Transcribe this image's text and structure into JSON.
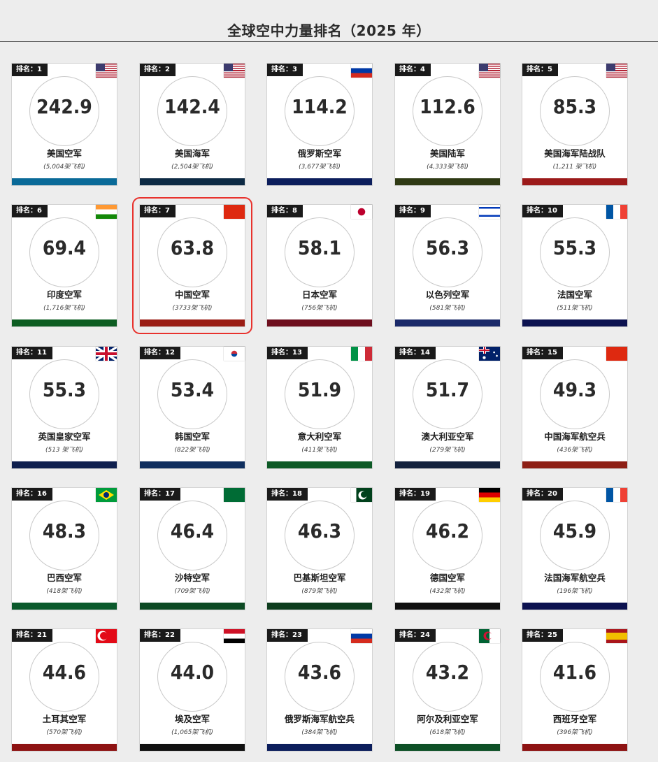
{
  "title": "全球空中力量排名（2025 年）",
  "cards": [
    {
      "rank": "排名：1",
      "score": "242.9",
      "name": "美国空军",
      "aircraft": "(5,004架飞机)",
      "flag": "us-flag-icon",
      "flag_class": "f-us",
      "bar_color": "#0a6a98"
    },
    {
      "rank": "排名：2",
      "score": "142.4",
      "name": "美国海军",
      "aircraft": "(2,504架飞机)",
      "flag": "us-flag-icon",
      "flag_class": "f-us",
      "bar_color": "#0d2a44"
    },
    {
      "rank": "排名：3",
      "score": "114.2",
      "name": "俄罗斯空军",
      "aircraft": "(3,677架飞机)",
      "flag": "russia-flag-icon",
      "flag_class": "f-ru",
      "bar_color": "#0c1e5c"
    },
    {
      "rank": "排名：4",
      "score": "112.6",
      "name": "美国陆军",
      "aircraft": "(4,333架飞机)",
      "flag": "us-flag-icon",
      "flag_class": "f-us",
      "bar_color": "#2f3a14"
    },
    {
      "rank": "排名：5",
      "score": "85.3",
      "name": "美国海军陆战队",
      "aircraft": "(1,211 架飞机)",
      "flag": "us-flag-icon",
      "flag_class": "f-us",
      "bar_color": "#9c1a1a"
    },
    {
      "rank": "排名：6",
      "score": "69.4",
      "name": "印度空军",
      "aircraft": "(1,716架飞机)",
      "flag": "india-flag-icon",
      "flag_class": "f-in",
      "bar_color": "#0d5d22"
    },
    {
      "rank": "排名：7",
      "score": "63.8",
      "name": "中国空军",
      "aircraft": "(3733架飞机)",
      "flag": "china-flag-icon",
      "flag_class": "f-cn",
      "bar_color": "#9a1c14",
      "highlight": true
    },
    {
      "rank": "排名：8",
      "score": "58.1",
      "name": "日本空军",
      "aircraft": "(756架飞机)",
      "flag": "japan-flag-icon",
      "flag_class": "f-jp",
      "bar_color": "#6e0f1e"
    },
    {
      "rank": "排名：9",
      "score": "56.3",
      "name": "以色列空军",
      "aircraft": "(581架飞机)",
      "flag": "israel-flag-icon",
      "flag_class": "f-il",
      "bar_color": "#1b2a6a"
    },
    {
      "rank": "排名：10",
      "score": "55.3",
      "name": "法国空军",
      "aircraft": "(511架飞机)",
      "flag": "france-flag-icon",
      "flag_class": "f-fr",
      "bar_color": "#0c1250"
    },
    {
      "rank": "排名：11",
      "score": "55.3",
      "name": "英国皇家空军",
      "aircraft": "(513 架飞机)",
      "flag": "uk-flag-icon",
      "flag_class": "f-uk",
      "bar_color": "#0f1f4e"
    },
    {
      "rank": "排名：12",
      "score": "53.4",
      "name": "韩国空军",
      "aircraft": "(822架飞机)",
      "flag": "south-korea-flag-icon",
      "flag_class": "f-kr",
      "bar_color": "#0f2e5e"
    },
    {
      "rank": "排名：13",
      "score": "51.9",
      "name": "意大利空军",
      "aircraft": "(411架飞机)",
      "flag": "italy-flag-icon",
      "flag_class": "f-it",
      "bar_color": "#0d5a26"
    },
    {
      "rank": "排名：14",
      "score": "51.7",
      "name": "澳大利亚空军",
      "aircraft": "(279架飞机)",
      "flag": "australia-flag-icon",
      "flag_class": "f-au",
      "bar_color": "#13213d"
    },
    {
      "rank": "排名：15",
      "score": "49.3",
      "name": "中国海军航空兵",
      "aircraft": "(436架飞机)",
      "flag": "china-flag-icon",
      "flag_class": "f-cn",
      "bar_color": "#8e1f15"
    },
    {
      "rank": "排名：16",
      "score": "48.3",
      "name": "巴西空军",
      "aircraft": "(418架飞机)",
      "flag": "brazil-flag-icon",
      "flag_class": "f-br",
      "bar_color": "#0b5a2c"
    },
    {
      "rank": "排名：17",
      "score": "46.4",
      "name": "沙特空军",
      "aircraft": "(709架飞机)",
      "flag": "saudi-arabia-flag-icon",
      "flag_class": "f-sa",
      "bar_color": "#0d4a24"
    },
    {
      "rank": "排名：18",
      "score": "46.3",
      "name": "巴基斯坦空军",
      "aircraft": "(879架飞机)",
      "flag": "pakistan-flag-icon",
      "flag_class": "f-pk",
      "bar_color": "#0e3d1e"
    },
    {
      "rank": "排名：19",
      "score": "46.2",
      "name": "德国空军",
      "aircraft": "(432架飞机)",
      "flag": "germany-flag-icon",
      "flag_class": "f-de",
      "bar_color": "#111111"
    },
    {
      "rank": "排名：20",
      "score": "45.9",
      "name": "法国海军航空兵",
      "aircraft": "(196架飞机)",
      "flag": "france-flag-icon",
      "flag_class": "f-fr",
      "bar_color": "#0c1250"
    },
    {
      "rank": "排名：21",
      "score": "44.6",
      "name": "土耳其空军",
      "aircraft": "(570架飞机)",
      "flag": "turkey-flag-icon",
      "flag_class": "f-tr",
      "bar_color": "#8e1313"
    },
    {
      "rank": "排名：22",
      "score": "44.0",
      "name": "埃及空军",
      "aircraft": "(1,065架飞机)",
      "flag": "egypt-flag-icon",
      "flag_class": "f-eg",
      "bar_color": "#111111"
    },
    {
      "rank": "排名：23",
      "score": "43.6",
      "name": "俄罗斯海军航空兵",
      "aircraft": "(384架飞机)",
      "flag": "russia-flag-icon",
      "flag_class": "f-ru",
      "bar_color": "#0c1e5c"
    },
    {
      "rank": "排名：24",
      "score": "43.2",
      "name": "阿尔及利亚空军",
      "aircraft": "(618架飞机)",
      "flag": "algeria-flag-icon",
      "flag_class": "f-dz",
      "bar_color": "#0d5026"
    },
    {
      "rank": "排名：25",
      "score": "41.6",
      "name": "西班牙空军",
      "aircraft": "(396架飞机)",
      "flag": "spain-flag-icon",
      "flag_class": "f-es",
      "bar_color": "#8e1313"
    }
  ]
}
